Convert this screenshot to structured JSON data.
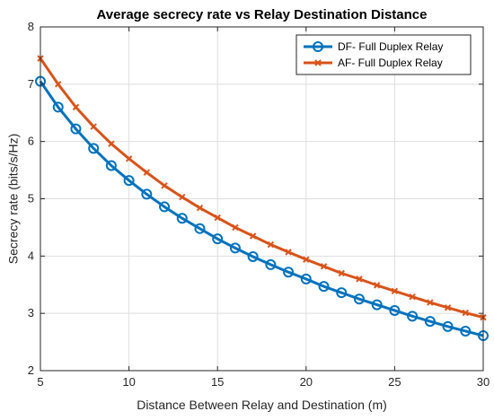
{
  "chart_data": {
    "type": "line",
    "title": "Average secrecy rate vs Relay Destination Distance",
    "xlabel": "Distance Between Relay and Destination (m)",
    "ylabel": "Secrecy rate (bits/s/Hz)",
    "xlim": [
      5,
      30
    ],
    "ylim": [
      2,
      8
    ],
    "xticks": [
      5,
      10,
      15,
      20,
      25,
      30
    ],
    "yticks": [
      2,
      3,
      4,
      5,
      6,
      7,
      8
    ],
    "grid": true,
    "legend_position": "top-right",
    "x": [
      5,
      6,
      7,
      8,
      9,
      10,
      11,
      12,
      13,
      14,
      15,
      16,
      17,
      18,
      19,
      20,
      21,
      22,
      23,
      24,
      25,
      26,
      27,
      28,
      29,
      30
    ],
    "series": [
      {
        "name": "DF- Full Duplex Relay",
        "color": "#0072BD",
        "marker": "circle",
        "values": [
          7.05,
          6.6,
          6.22,
          5.88,
          5.58,
          5.32,
          5.08,
          4.86,
          4.66,
          4.48,
          4.3,
          4.14,
          3.99,
          3.85,
          3.72,
          3.6,
          3.47,
          3.36,
          3.25,
          3.15,
          3.05,
          2.95,
          2.86,
          2.77,
          2.69,
          2.61
        ]
      },
      {
        "name": "AF- Full Duplex Relay",
        "color": "#D95319",
        "marker": "x",
        "values": [
          7.45,
          7.0,
          6.6,
          6.26,
          5.96,
          5.7,
          5.46,
          5.23,
          5.03,
          4.84,
          4.67,
          4.5,
          4.35,
          4.2,
          4.07,
          3.94,
          3.82,
          3.7,
          3.6,
          3.49,
          3.39,
          3.29,
          3.19,
          3.1,
          3.01,
          2.93
        ]
      }
    ]
  }
}
